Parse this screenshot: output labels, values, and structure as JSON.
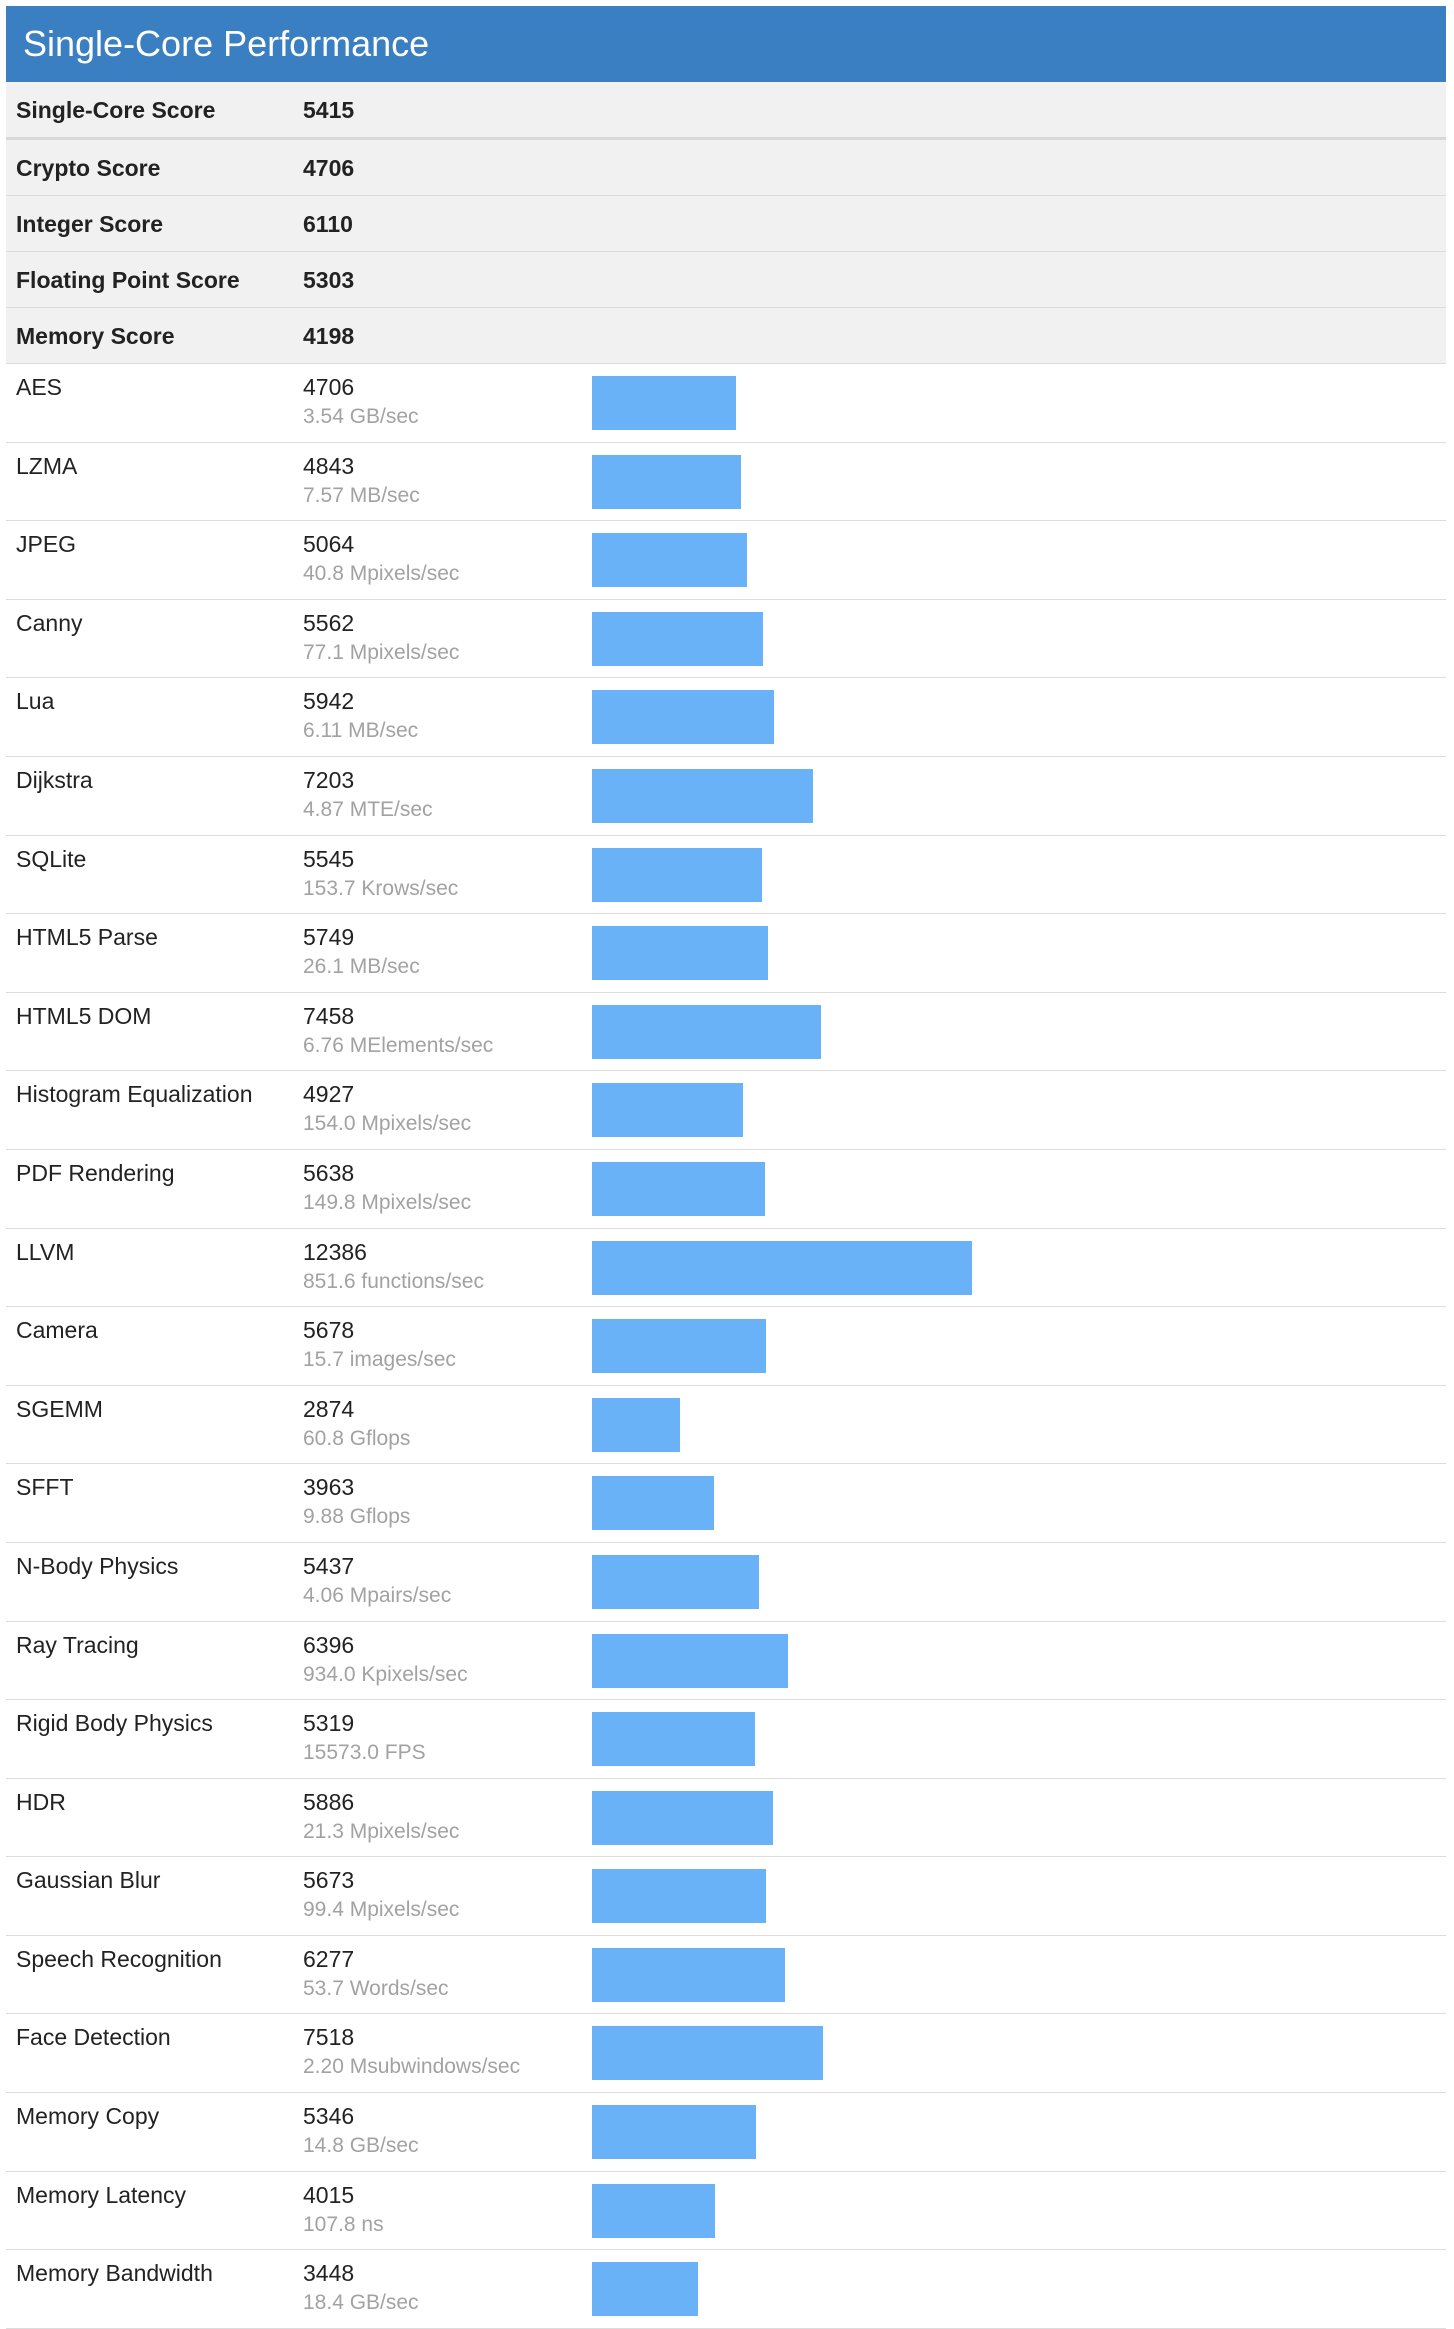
{
  "header": {
    "title": "Single-Core Performance"
  },
  "scores": [
    {
      "label": "Single-Core Score",
      "value": "5415"
    },
    {
      "label": "Crypto Score",
      "value": "4706"
    },
    {
      "label": "Integer Score",
      "value": "6110"
    },
    {
      "label": "Floating Point Score",
      "value": "5303"
    },
    {
      "label": "Memory Score",
      "value": "4198"
    }
  ],
  "benchmarks": [
    {
      "name": "AES",
      "score": 4706,
      "unit": "3.54 GB/sec"
    },
    {
      "name": "LZMA",
      "score": 4843,
      "unit": "7.57 MB/sec"
    },
    {
      "name": "JPEG",
      "score": 5064,
      "unit": "40.8 Mpixels/sec"
    },
    {
      "name": "Canny",
      "score": 5562,
      "unit": "77.1 Mpixels/sec"
    },
    {
      "name": "Lua",
      "score": 5942,
      "unit": "6.11 MB/sec"
    },
    {
      "name": "Dijkstra",
      "score": 7203,
      "unit": "4.87 MTE/sec"
    },
    {
      "name": "SQLite",
      "score": 5545,
      "unit": "153.7 Krows/sec"
    },
    {
      "name": "HTML5 Parse",
      "score": 5749,
      "unit": "26.1 MB/sec"
    },
    {
      "name": "HTML5 DOM",
      "score": 7458,
      "unit": "6.76 MElements/sec"
    },
    {
      "name": "Histogram Equalization",
      "score": 4927,
      "unit": "154.0 Mpixels/sec"
    },
    {
      "name": "PDF Rendering",
      "score": 5638,
      "unit": "149.8 Mpixels/sec"
    },
    {
      "name": "LLVM",
      "score": 12386,
      "unit": "851.6 functions/sec"
    },
    {
      "name": "Camera",
      "score": 5678,
      "unit": "15.7 images/sec"
    },
    {
      "name": "SGEMM",
      "score": 2874,
      "unit": "60.8 Gflops"
    },
    {
      "name": "SFFT",
      "score": 3963,
      "unit": "9.88 Gflops"
    },
    {
      "name": "N-Body Physics",
      "score": 5437,
      "unit": "4.06 Mpairs/sec"
    },
    {
      "name": "Ray Tracing",
      "score": 6396,
      "unit": "934.0 Kpixels/sec"
    },
    {
      "name": "Rigid Body Physics",
      "score": 5319,
      "unit": "15573.0 FPS"
    },
    {
      "name": "HDR",
      "score": 5886,
      "unit": "21.3 Mpixels/sec"
    },
    {
      "name": "Gaussian Blur",
      "score": 5673,
      "unit": "99.4 Mpixels/sec"
    },
    {
      "name": "Speech Recognition",
      "score": 6277,
      "unit": "53.7 Words/sec"
    },
    {
      "name": "Face Detection",
      "score": 7518,
      "unit": "2.20 Msubwindows/sec"
    },
    {
      "name": "Memory Copy",
      "score": 5346,
      "unit": "14.8 GB/sec"
    },
    {
      "name": "Memory Latency",
      "score": 4015,
      "unit": "107.8 ns"
    },
    {
      "name": "Memory Bandwidth",
      "score": 3448,
      "unit": "18.4 GB/sec"
    }
  ],
  "colors": {
    "header": "#3a7fc1",
    "bar": "#6ab2f8"
  }
}
